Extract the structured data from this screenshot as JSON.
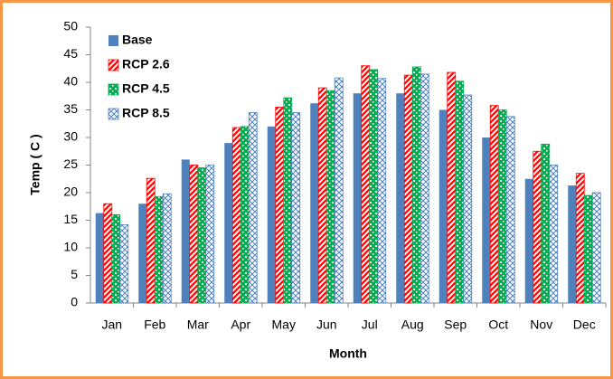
{
  "chart_data": {
    "type": "bar",
    "x_label": "Month",
    "y_label": "Temp ( C )",
    "categories": [
      "Jan",
      "Feb",
      "Mar",
      "Apr",
      "May",
      "Jun",
      "Jul",
      "Aug",
      "Sep",
      "Oct",
      "Nov",
      "Dec"
    ],
    "series": [
      {
        "name": "Base",
        "color": "#4f81bd",
        "pattern": "solid",
        "values": [
          16.3,
          18,
          26,
          29,
          32,
          36.2,
          38,
          38,
          35,
          30,
          22.5,
          21.3
        ]
      },
      {
        "name": "RCP 2.6",
        "color": "#ff0000",
        "pattern": "diagonal",
        "values": [
          18,
          22.6,
          25,
          31.8,
          35.5,
          39,
          43,
          41.3,
          41.8,
          35.8,
          27.5,
          23.5
        ]
      },
      {
        "name": "RCP 4.5",
        "color": "#00b050",
        "pattern": "dots",
        "values": [
          16,
          19.3,
          24.5,
          32,
          37.2,
          38.5,
          42.3,
          42.8,
          40.2,
          35,
          28.8,
          19.5
        ]
      },
      {
        "name": "RCP 8.5",
        "color": "#4f81bd",
        "pattern": "cross",
        "values": [
          14.2,
          19.8,
          25,
          34.5,
          34.5,
          40.8,
          40.7,
          41.5,
          37.7,
          33.8,
          25,
          20
        ]
      }
    ],
    "ylim": [
      0,
      50
    ],
    "yticks": [
      0,
      5,
      10,
      15,
      20,
      25,
      30,
      35,
      40,
      45,
      50
    ],
    "grid": false,
    "legend": "upper left"
  }
}
